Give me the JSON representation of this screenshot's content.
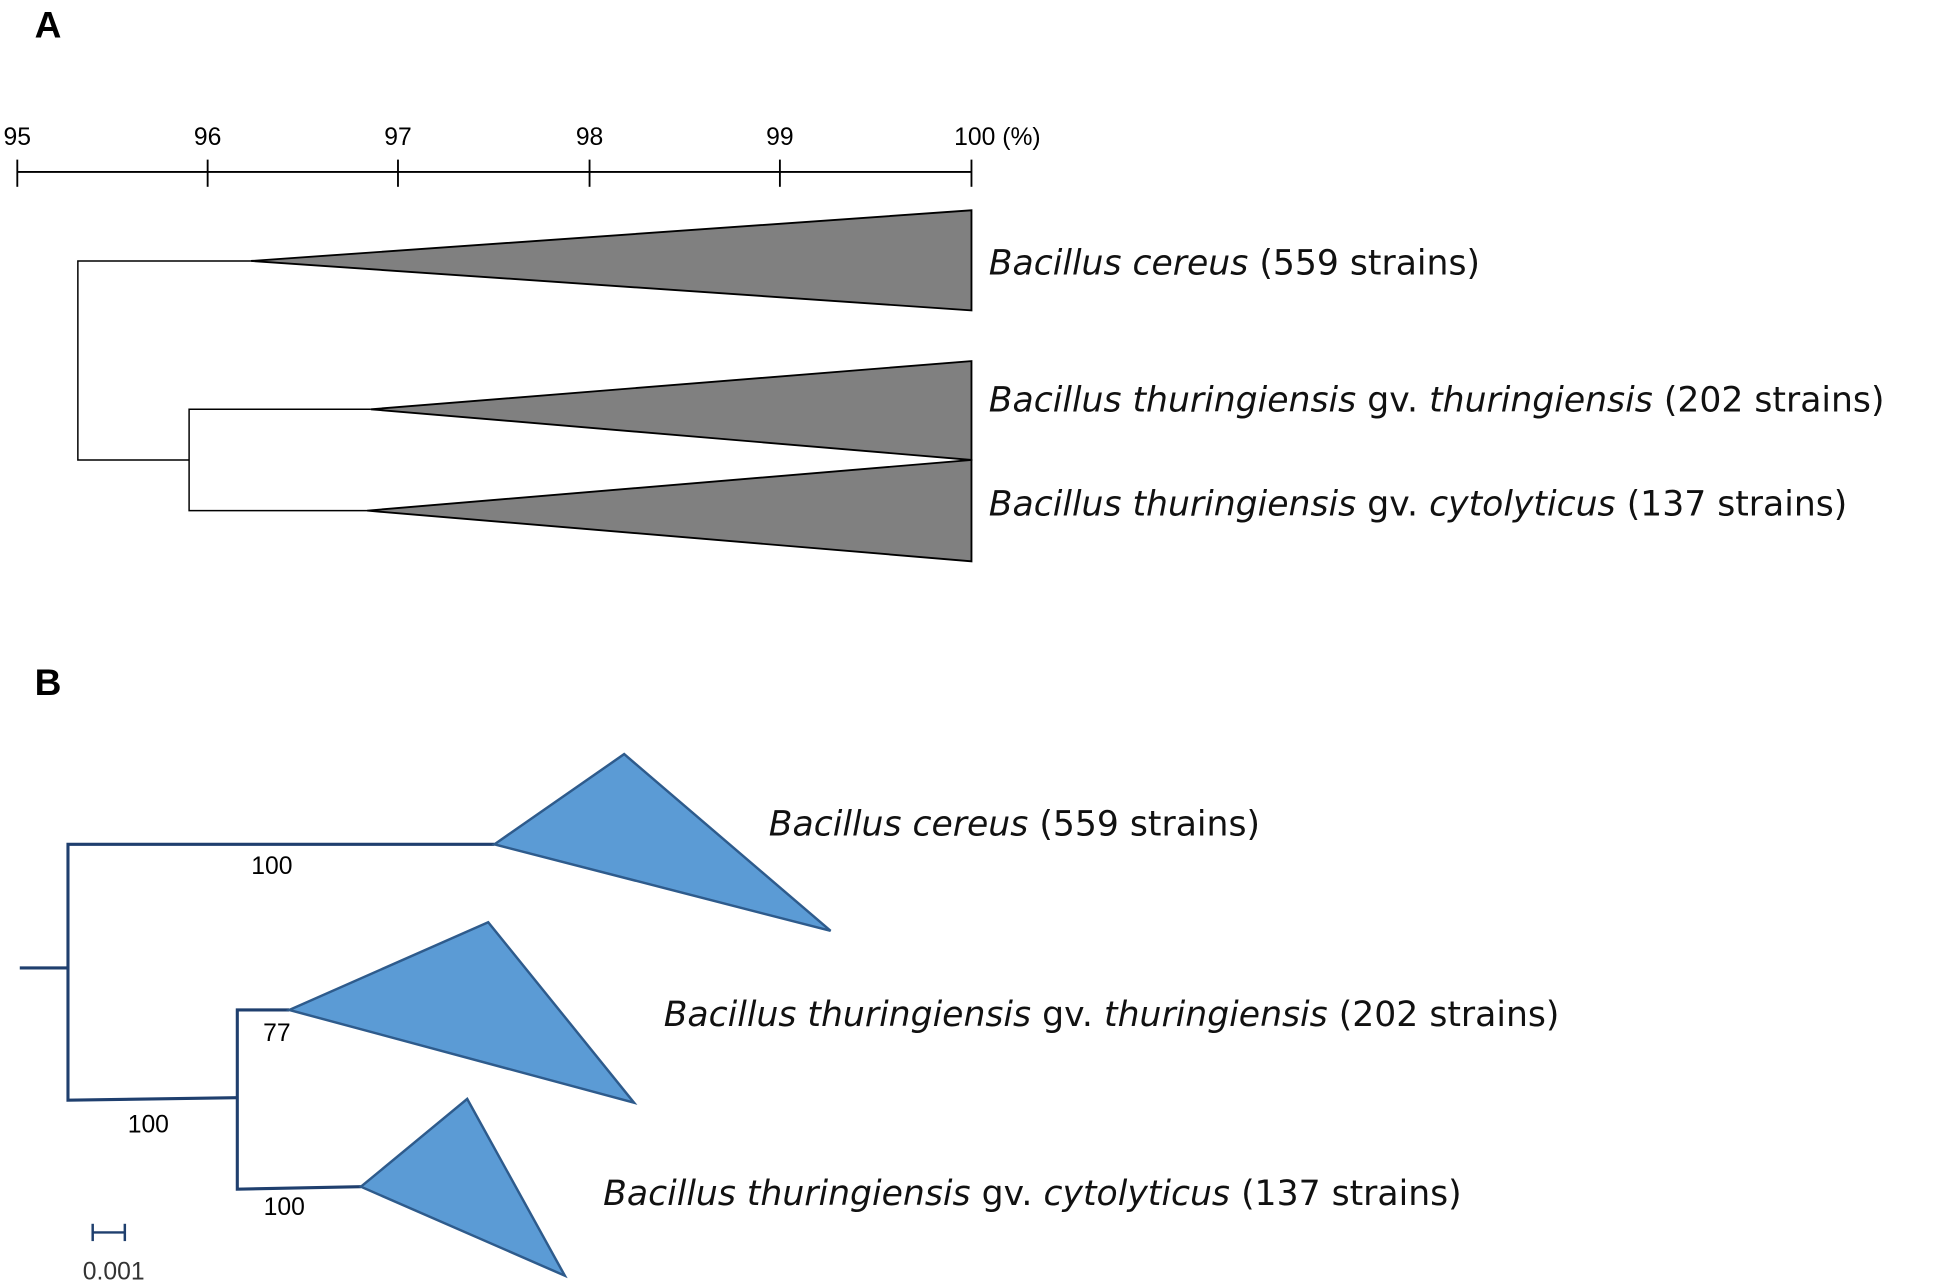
{
  "panel_a": {
    "label": "A",
    "scale_ticks": [
      "95",
      "96",
      "97",
      "98",
      "99",
      "100 (%)"
    ],
    "clades": [
      {
        "segments": [
          {
            "text": "Bacillus cereus",
            "italic": true
          },
          {
            "text": "(559 strains)",
            "italic": false
          }
        ]
      },
      {
        "segments": [
          {
            "text": "Bacillus thuringiensis",
            "italic": true
          },
          {
            "text": "gv.",
            "italic": false
          },
          {
            "text": "thuringiensis",
            "italic": true
          },
          {
            "text": "(202 strains)",
            "italic": false
          }
        ]
      },
      {
        "segments": [
          {
            "text": "Bacillus thuringiensis",
            "italic": true
          },
          {
            "text": "gv.",
            "italic": false
          },
          {
            "text": "cytolyticus",
            "italic": true
          },
          {
            "text": "(137 strains)",
            "italic": false
          }
        ]
      }
    ]
  },
  "panel_b": {
    "label": "B",
    "clades": [
      {
        "segments": [
          {
            "text": "Bacillus cereus",
            "italic": true
          },
          {
            "text": "(559 strains)",
            "italic": false
          }
        ]
      },
      {
        "segments": [
          {
            "text": "Bacillus thuringiensis",
            "italic": true
          },
          {
            "text": "gv.",
            "italic": false
          },
          {
            "text": "thuringiensis",
            "italic": true
          },
          {
            "text": "(202 strains)",
            "italic": false
          }
        ]
      },
      {
        "segments": [
          {
            "text": "Bacillus thuringiensis",
            "italic": true
          },
          {
            "text": "gv.",
            "italic": false
          },
          {
            "text": "cytolyticus",
            "italic": true
          },
          {
            "text": "(137 strains)",
            "italic": false
          }
        ]
      }
    ],
    "bootstrap": [
      "100",
      "100",
      "77",
      "100"
    ],
    "scale_bar": "0.001"
  }
}
